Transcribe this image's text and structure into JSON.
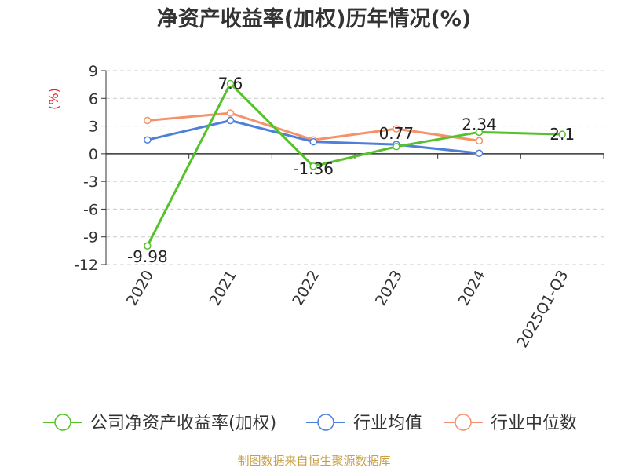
{
  "chart_data": {
    "type": "line",
    "title": "净资产收益率(加权)历年情况(%)",
    "ylabel": "(%)",
    "xlabel": "",
    "ylim": [
      -12,
      9
    ],
    "yticks": [
      9,
      6,
      3,
      0,
      -3,
      -6,
      -9,
      -12
    ],
    "grid": true,
    "legend_position": "bottom",
    "categories": [
      "2020",
      "2021",
      "2022",
      "2023",
      "2024",
      "2025Q1-Q3"
    ],
    "series": [
      {
        "name": "公司净资产收益率(加权)",
        "color": "#55c12b",
        "values": [
          -9.98,
          7.6,
          -1.36,
          0.77,
          2.34,
          2.1
        ],
        "labels": [
          "-9.98",
          "7.6",
          "-1.36",
          "0.77",
          "2.34",
          "2.1"
        ]
      },
      {
        "name": "行业均值",
        "color": "#4e7fdb",
        "values": [
          1.5,
          3.6,
          1.3,
          1.0,
          0.05,
          null
        ]
      },
      {
        "name": "行业中位数",
        "color": "#f5926a",
        "values": [
          3.6,
          4.4,
          1.5,
          2.7,
          1.4,
          null
        ]
      }
    ]
  },
  "source": "制图数据来自恒生聚源数据库"
}
